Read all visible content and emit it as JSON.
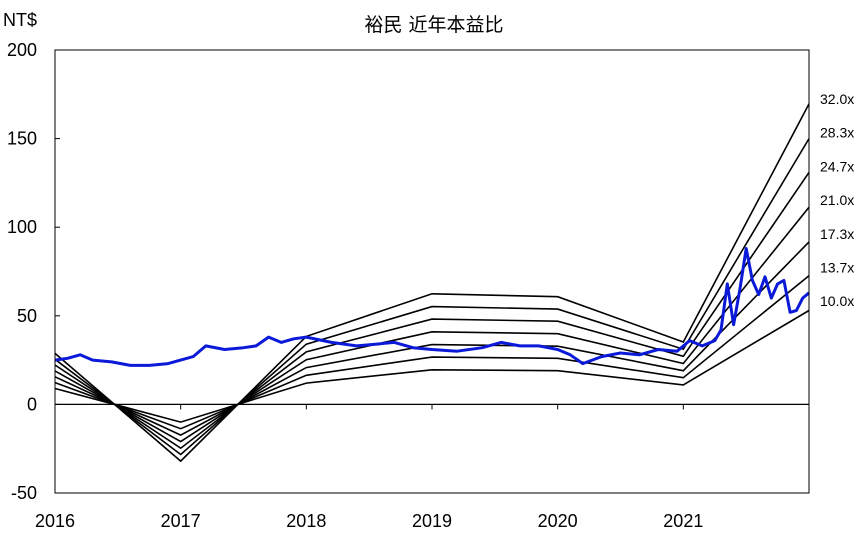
{
  "chart_data": {
    "type": "line",
    "title": "裕民 近年本益比",
    "ylabel": "NT$",
    "ylim": [
      -50,
      200
    ],
    "yticks": [
      -50,
      0,
      50,
      100,
      150,
      200
    ],
    "xlim": [
      2016,
      2022
    ],
    "xticks": [
      "2016",
      "2017",
      "2018",
      "2019",
      "2020",
      "2021"
    ],
    "grid": false,
    "colors": {
      "price": "#0a1ad8",
      "band": "#000000",
      "axis": "#000000"
    },
    "eps_points": {
      "x": [
        2016.0,
        2017.0,
        2018.0,
        2019.0,
        2020.0,
        2021.0,
        2022.0
      ],
      "eps": [
        0.9,
        -1.0,
        1.2,
        1.95,
        1.9,
        1.1,
        5.3
      ]
    },
    "bands": [
      {
        "label": "32.0x",
        "multiple": 32.0
      },
      {
        "label": "28.3x",
        "multiple": 28.3
      },
      {
        "label": "24.7x",
        "multiple": 24.7
      },
      {
        "label": "21.0x",
        "multiple": 21.0
      },
      {
        "label": "17.3x",
        "multiple": 17.3
      },
      {
        "label": "13.7x",
        "multiple": 13.7
      },
      {
        "label": "10.0x",
        "multiple": 10.0
      }
    ],
    "series": [
      {
        "type": "price",
        "x": [
          2016.0,
          2016.1,
          2016.2,
          2016.3,
          2016.45,
          2016.6,
          2016.75,
          2016.9,
          2017.0,
          2017.1,
          2017.2,
          2017.35,
          2017.5,
          2017.6,
          2017.7,
          2017.8,
          2017.9,
          2018.0,
          2018.2,
          2018.4,
          2018.55,
          2018.7,
          2018.85,
          2019.0,
          2019.2,
          2019.4,
          2019.55,
          2019.7,
          2019.85,
          2020.0,
          2020.1,
          2020.2,
          2020.35,
          2020.5,
          2020.65,
          2020.8,
          2020.95,
          2021.05,
          2021.15,
          2021.25,
          2021.3,
          2021.35,
          2021.4,
          2021.45,
          2021.5,
          2021.55,
          2021.6,
          2021.65,
          2021.7,
          2021.75,
          2021.8,
          2021.85,
          2021.9,
          2021.95,
          2022.0
        ],
        "y": [
          25,
          26,
          28,
          25,
          24,
          22,
          22,
          23,
          25,
          27,
          33,
          31,
          32,
          33,
          38,
          35,
          37,
          38,
          35,
          33,
          34,
          35,
          32,
          31,
          30,
          32,
          35,
          33,
          33,
          31,
          28,
          23,
          27,
          29,
          28,
          31,
          30,
          36,
          33,
          36,
          42,
          68,
          45,
          65,
          88,
          70,
          62,
          72,
          60,
          68,
          70,
          52,
          53,
          60,
          63
        ]
      }
    ]
  }
}
